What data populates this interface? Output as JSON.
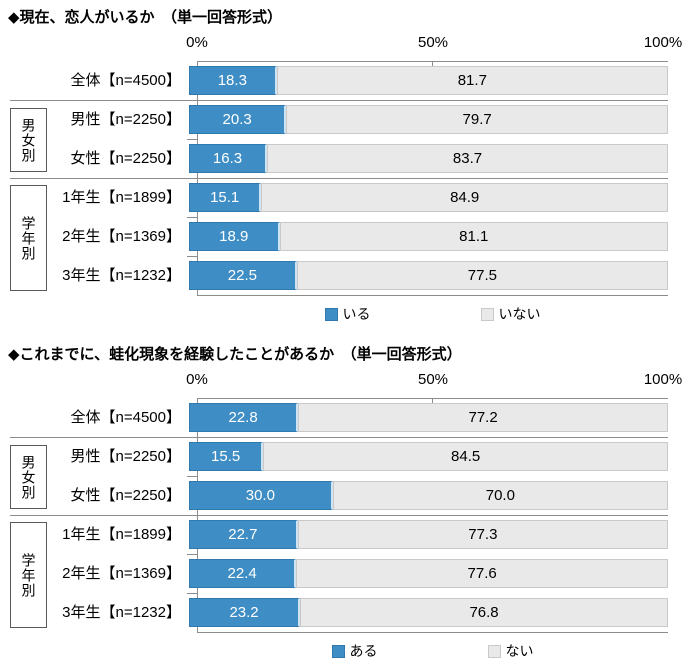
{
  "colors": {
    "bar_yes": "#3e8dc5",
    "bar_yes_border": "#3079ae",
    "bar_no": "#e9e9e9",
    "bar_no_border": "#c9c9c9",
    "grid_line": "#8c8c8c"
  },
  "charts": [
    {
      "title": "◆現在、恋人がいるか　（単一回答形式）",
      "axis_ticks": [
        "0%",
        "50%",
        "100%"
      ],
      "groups": [
        {
          "label": "男女別"
        },
        {
          "label": "学年別"
        }
      ],
      "rows": [
        {
          "label": "全体【n=4500】",
          "yes": "18.3",
          "no": "81.7"
        },
        {
          "label": "男性【n=2250】",
          "yes": "20.3",
          "no": "79.7"
        },
        {
          "label": "女性【n=2250】",
          "yes": "16.3",
          "no": "83.7"
        },
        {
          "label": "1年生【n=1899】",
          "yes": "15.1",
          "no": "84.9"
        },
        {
          "label": "2年生【n=1369】",
          "yes": "18.9",
          "no": "81.1"
        },
        {
          "label": "3年生【n=1232】",
          "yes": "22.5",
          "no": "77.5"
        }
      ],
      "legend": [
        {
          "label": "いる"
        },
        {
          "label": "いない"
        }
      ]
    },
    {
      "title": "◆これまでに、蛙化現象を経験したことがあるか　（単一回答形式）",
      "axis_ticks": [
        "0%",
        "50%",
        "100%"
      ],
      "groups": [
        {
          "label": "男女別"
        },
        {
          "label": "学年別"
        }
      ],
      "rows": [
        {
          "label": "全体【n=4500】",
          "yes": "22.8",
          "no": "77.2"
        },
        {
          "label": "男性【n=2250】",
          "yes": "15.5",
          "no": "84.5"
        },
        {
          "label": "女性【n=2250】",
          "yes": "30.0",
          "no": "70.0"
        },
        {
          "label": "1年生【n=1899】",
          "yes": "22.7",
          "no": "77.3"
        },
        {
          "label": "2年生【n=1369】",
          "yes": "22.4",
          "no": "77.6"
        },
        {
          "label": "3年生【n=1232】",
          "yes": "23.2",
          "no": "76.8"
        }
      ],
      "legend": [
        {
          "label": "ある"
        },
        {
          "label": "ない"
        }
      ]
    }
  ],
  "chart_data": [
    {
      "type": "bar",
      "orientation": "horizontal_stacked",
      "title": "◆現在、恋人がいるか　（単一回答形式）",
      "categories": [
        "全体【n=4500】",
        "男性【n=2250】",
        "女性【n=2250】",
        "1年生【n=1899】",
        "2年生【n=1369】",
        "3年生【n=1232】"
      ],
      "series": [
        {
          "name": "いる",
          "color": "#3e8dc5",
          "values": [
            18.3,
            20.3,
            16.3,
            15.1,
            18.9,
            22.5
          ]
        },
        {
          "name": "いない",
          "color": "#e9e9e9",
          "values": [
            81.7,
            79.7,
            83.7,
            84.9,
            81.1,
            77.5
          ]
        }
      ],
      "xlim": [
        0,
        100
      ],
      "x_ticks": [
        "0%",
        "50%",
        "100%"
      ],
      "legend_position": "bottom",
      "group_labels": [
        {
          "label": "男女別",
          "category_indexes": [
            1,
            2
          ]
        },
        {
          "label": "学年別",
          "category_indexes": [
            3,
            4,
            5
          ]
        }
      ]
    },
    {
      "type": "bar",
      "orientation": "horizontal_stacked",
      "title": "◆これまでに、蛙化現象を経験したことがあるか　（単一回答形式）",
      "categories": [
        "全体【n=4500】",
        "男性【n=2250】",
        "女性【n=2250】",
        "1年生【n=1899】",
        "2年生【n=1369】",
        "3年生【n=1232】"
      ],
      "series": [
        {
          "name": "ある",
          "color": "#3e8dc5",
          "values": [
            22.8,
            15.5,
            30.0,
            22.7,
            22.4,
            23.2
          ]
        },
        {
          "name": "ない",
          "color": "#e9e9e9",
          "values": [
            77.2,
            84.5,
            70.0,
            77.3,
            77.6,
            76.8
          ]
        }
      ],
      "xlim": [
        0,
        100
      ],
      "x_ticks": [
        "0%",
        "50%",
        "100%"
      ],
      "legend_position": "bottom",
      "group_labels": [
        {
          "label": "男女別",
          "category_indexes": [
            1,
            2
          ]
        },
        {
          "label": "学年別",
          "category_indexes": [
            3,
            4,
            5
          ]
        }
      ]
    }
  ]
}
